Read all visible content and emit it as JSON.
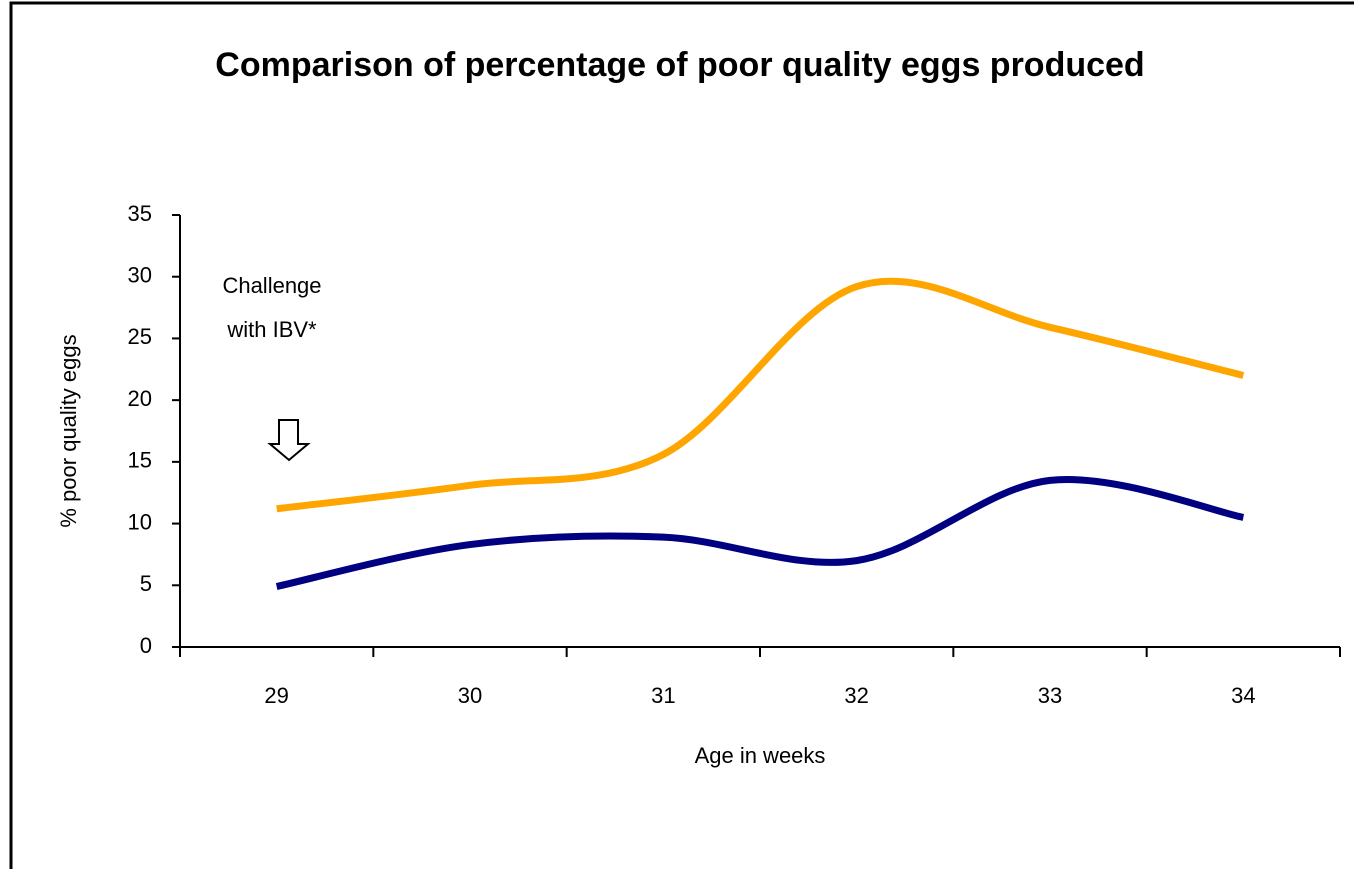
{
  "chart_data": {
    "type": "line",
    "title": "Comparison of percentage of poor quality eggs produced",
    "x_label": "Age in weeks",
    "y_label": "% poor quality eggs",
    "annotation": [
      "Challenge",
      "with IBV*"
    ],
    "categories": [
      "29",
      "30",
      "31",
      "32",
      "33",
      "34"
    ],
    "series": [
      {
        "color": "#ffa500",
        "values": [
          11.2,
          13.1,
          15.6,
          29.2,
          25.9,
          22
        ]
      },
      {
        "color": "#000080",
        "values": [
          4.9,
          8.3,
          8.9,
          7,
          13.5,
          10.5
        ]
      }
    ],
    "ylim": [
      0,
      35
    ],
    "yticks": [
      0,
      5,
      10,
      15,
      20,
      25,
      30,
      35
    ],
    "grid": false
  }
}
